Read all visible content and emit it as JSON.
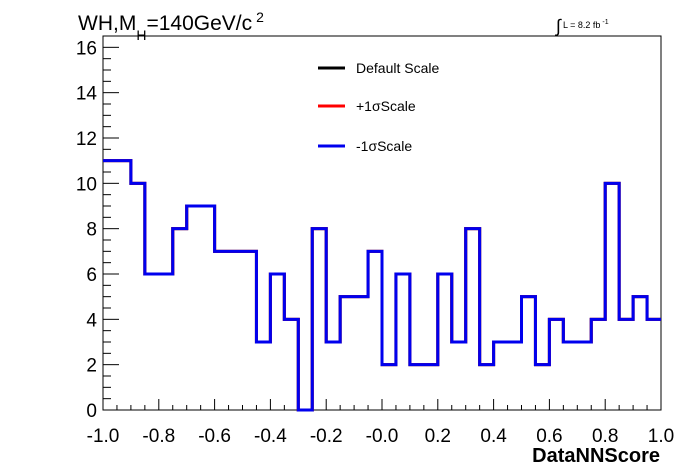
{
  "chart_data": {
    "type": "line",
    "title": {
      "prefix": "WH,M",
      "sub": "H",
      "mid": "=140GeV/c",
      "sup": "2"
    },
    "lumi": {
      "symbol": "∫",
      "text": "L = 8.2 fb",
      "sup": "-1"
    },
    "xlabel": "DataNNScore",
    "ylabel": "",
    "xlim": [
      -1.0,
      1.0
    ],
    "ylim": [
      0,
      16.5
    ],
    "x_ticks": [
      "-1.0",
      "-0.8",
      "-0.6",
      "-0.4",
      "-0.2",
      "-0.0",
      "0.2",
      "0.4",
      "0.6",
      "0.8",
      "1.0"
    ],
    "y_ticks": [
      "0",
      "2",
      "4",
      "6",
      "8",
      "10",
      "12",
      "14",
      "16"
    ],
    "legend_position": "top-center",
    "grid": false,
    "bin_edges": [
      -1.0,
      -0.95,
      -0.9,
      -0.85,
      -0.8,
      -0.75,
      -0.7,
      -0.65,
      -0.6,
      -0.55,
      -0.5,
      -0.45,
      -0.4,
      -0.35,
      -0.3,
      -0.25,
      -0.2,
      -0.15,
      -0.1,
      -0.05,
      0.0,
      0.05,
      0.1,
      0.15,
      0.2,
      0.25,
      0.3,
      0.35,
      0.4,
      0.45,
      0.5,
      0.55,
      0.6,
      0.65,
      0.7,
      0.75,
      0.8,
      0.85,
      0.9,
      0.95,
      1.0
    ],
    "series": [
      {
        "name": "Default Scale",
        "color": "#000000",
        "values": [
          11,
          11,
          10,
          6,
          6,
          8,
          9,
          9,
          7,
          7,
          7,
          3,
          6,
          4,
          0,
          8,
          3,
          5,
          5,
          7,
          2,
          6,
          2,
          2,
          6,
          3,
          8,
          2,
          3,
          3,
          5,
          2,
          4,
          3,
          3,
          4,
          10,
          4,
          5,
          4
        ]
      },
      {
        "name": "+1σScale",
        "color": "#ff0000",
        "values": [
          11,
          11,
          10,
          6,
          6,
          8,
          9,
          9,
          7,
          7,
          7,
          3,
          6,
          4,
          0,
          8,
          3,
          5,
          5,
          7,
          2,
          6,
          2,
          2,
          6,
          3,
          8,
          2,
          3,
          3,
          5,
          2,
          4,
          3,
          3,
          4,
          10,
          4,
          5,
          4
        ]
      },
      {
        "name": "-1σScale",
        "color": "#0000ee",
        "values": [
          11,
          11,
          10,
          6,
          6,
          8,
          9,
          9,
          7,
          7,
          7,
          3,
          6,
          4,
          0,
          8,
          3,
          5,
          5,
          7,
          2,
          6,
          2,
          2,
          6,
          3,
          8,
          2,
          3,
          3,
          5,
          2,
          4,
          3,
          3,
          4,
          10,
          4,
          5,
          4
        ]
      }
    ]
  }
}
